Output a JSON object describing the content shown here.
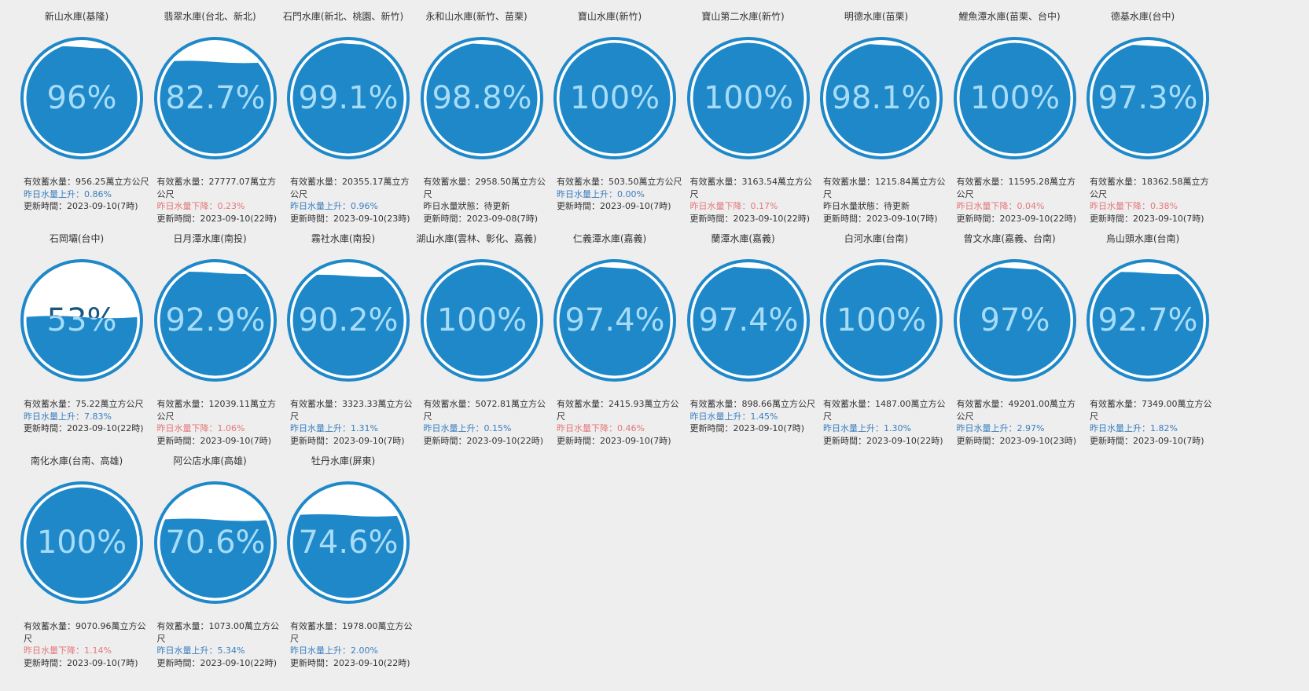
{
  "colors": {
    "ring": "#1e88c9",
    "water": "#1e88c9",
    "text_on_water": "#a6dcf8",
    "text_on_empty": "#17577f",
    "up": "#3a7fc0",
    "down": "#e5777a"
  },
  "reservoirs": [
    {
      "name": "新山水庫(基隆)",
      "percent_label": "96%",
      "percent": 96,
      "capacity": "有效蓄水量：956.25萬立方公尺",
      "change": "昨日水量上升：0.86%",
      "change_type": "up",
      "updated": "更新時間：2023-09-10(7時)"
    },
    {
      "name": "翡翠水庫(台北、新北)",
      "percent_label": "82.7%",
      "percent": 82.7,
      "capacity": "有效蓄水量：27777.07萬立方公尺",
      "change": "昨日水量下降：0.23%",
      "change_type": "down",
      "updated": "更新時間：2023-09-10(22時)"
    },
    {
      "name": "石門水庫(新北、桃園、新竹)",
      "percent_label": "99.1%",
      "percent": 99.1,
      "capacity": "有效蓄水量：20355.17萬立方公尺",
      "change": "昨日水量上升：0.96%",
      "change_type": "up",
      "updated": "更新時間：2023-09-10(23時)"
    },
    {
      "name": "永和山水庫(新竹、苗栗)",
      "percent_label": "98.8%",
      "percent": 98.8,
      "capacity": "有效蓄水量：2958.50萬立方公尺",
      "change": "昨日水量狀態：待更新",
      "change_type": "neutral",
      "updated": "更新時間：2023-09-08(7時)"
    },
    {
      "name": "寶山水庫(新竹)",
      "percent_label": "100%",
      "percent": 100,
      "capacity": "有效蓄水量：503.50萬立方公尺",
      "change": "昨日水量上升：0.00%",
      "change_type": "up",
      "updated": "更新時間：2023-09-10(7時)"
    },
    {
      "name": "寶山第二水庫(新竹)",
      "percent_label": "100%",
      "percent": 100,
      "capacity": "有效蓄水量：3163.54萬立方公尺",
      "change": "昨日水量下降：0.17%",
      "change_type": "down",
      "updated": "更新時間：2023-09-10(22時)"
    },
    {
      "name": "明德水庫(苗栗)",
      "percent_label": "98.1%",
      "percent": 98.1,
      "capacity": "有效蓄水量：1215.84萬立方公尺",
      "change": "昨日水量狀態：待更新",
      "change_type": "neutral",
      "updated": "更新時間：2023-09-10(7時)"
    },
    {
      "name": "鯉魚潭水庫(苗栗、台中)",
      "percent_label": "100%",
      "percent": 100,
      "capacity": "有效蓄水量：11595.28萬立方公尺",
      "change": "昨日水量下降：0.04%",
      "change_type": "down",
      "updated": "更新時間：2023-09-10(22時)"
    },
    {
      "name": "德基水庫(台中)",
      "percent_label": "97.3%",
      "percent": 97.3,
      "capacity": "有效蓄水量：18362.58萬立方公尺",
      "change": "昨日水量下降：0.38%",
      "change_type": "down",
      "updated": "更新時間：2023-09-10(7時)"
    },
    {
      "name": "石岡壩(台中)",
      "percent_label": "53%",
      "percent": 53,
      "capacity": "有效蓄水量：75.22萬立方公尺",
      "change": "昨日水量上升：7.83%",
      "change_type": "up",
      "updated": "更新時間：2023-09-10(22時)"
    },
    {
      "name": "日月潭水庫(南投)",
      "percent_label": "92.9%",
      "percent": 92.9,
      "capacity": "有效蓄水量：12039.11萬立方公尺",
      "change": "昨日水量下降：1.06%",
      "change_type": "down",
      "updated": "更新時間：2023-09-10(7時)"
    },
    {
      "name": "霧社水庫(南投)",
      "percent_label": "90.2%",
      "percent": 90.2,
      "capacity": "有效蓄水量：3323.33萬立方公尺",
      "change": "昨日水量上升：1.31%",
      "change_type": "up",
      "updated": "更新時間：2023-09-10(7時)"
    },
    {
      "name": "湖山水庫(雲林、彰化、嘉義)",
      "percent_label": "100%",
      "percent": 100,
      "capacity": "有效蓄水量：5072.81萬立方公尺",
      "change": "昨日水量上升：0.15%",
      "change_type": "up",
      "updated": "更新時間：2023-09-10(22時)"
    },
    {
      "name": "仁義潭水庫(嘉義)",
      "percent_label": "97.4%",
      "percent": 97.4,
      "capacity": "有效蓄水量：2415.93萬立方公尺",
      "change": "昨日水量下降：0.46%",
      "change_type": "down",
      "updated": "更新時間：2023-09-10(7時)"
    },
    {
      "name": "蘭潭水庫(嘉義)",
      "percent_label": "97.4%",
      "percent": 97.4,
      "capacity": "有效蓄水量：898.66萬立方公尺",
      "change": "昨日水量上升：1.45%",
      "change_type": "up",
      "updated": "更新時間：2023-09-10(7時)"
    },
    {
      "name": "白河水庫(台南)",
      "percent_label": "100%",
      "percent": 100,
      "capacity": "有效蓄水量：1487.00萬立方公尺",
      "change": "昨日水量上升：1.30%",
      "change_type": "up",
      "updated": "更新時間：2023-09-10(22時)"
    },
    {
      "name": "曾文水庫(嘉義、台南)",
      "percent_label": "97%",
      "percent": 97,
      "capacity": "有效蓄水量：49201.00萬立方公尺",
      "change": "昨日水量上升：2.97%",
      "change_type": "up",
      "updated": "更新時間：2023-09-10(23時)"
    },
    {
      "name": "烏山頭水庫(台南)",
      "percent_label": "92.7%",
      "percent": 92.7,
      "capacity": "有效蓄水量：7349.00萬立方公尺",
      "change": "昨日水量上升：1.82%",
      "change_type": "up",
      "updated": "更新時間：2023-09-10(7時)"
    },
    {
      "name": "南化水庫(台南、高雄)",
      "percent_label": "100%",
      "percent": 100,
      "capacity": "有效蓄水量：9070.96萬立方公尺",
      "change": "昨日水量下降：1.14%",
      "change_type": "down",
      "updated": "更新時間：2023-09-10(7時)"
    },
    {
      "name": "阿公店水庫(高雄)",
      "percent_label": "70.6%",
      "percent": 70.6,
      "capacity": "有效蓄水量：1073.00萬立方公尺",
      "change": "昨日水量上升：5.34%",
      "change_type": "up",
      "updated": "更新時間：2023-09-10(22時)"
    },
    {
      "name": "牡丹水庫(屏東)",
      "percent_label": "74.6%",
      "percent": 74.6,
      "capacity": "有效蓄水量：1978.00萬立方公尺",
      "change": "昨日水量上升：2.00%",
      "change_type": "up",
      "updated": "更新時間：2023-09-10(22時)"
    }
  ]
}
